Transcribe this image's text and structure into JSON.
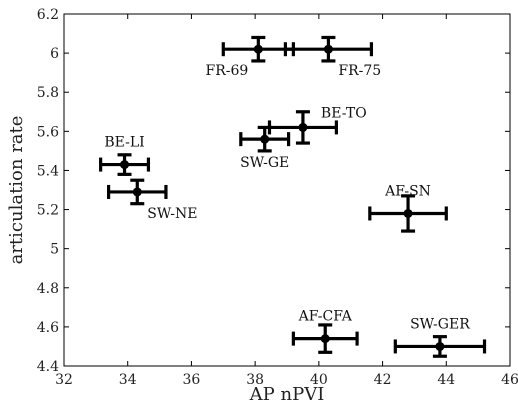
{
  "chart_data": {
    "type": "scatter",
    "title": "",
    "xlabel": "AP nPVI",
    "ylabel": "articulation rate",
    "xlim": [
      32,
      46
    ],
    "ylim": [
      4.4,
      6.2
    ],
    "xticks": [
      32,
      34,
      36,
      38,
      40,
      42,
      44,
      46
    ],
    "yticks": [
      4.4,
      4.6,
      4.8,
      5.0,
      5.2,
      5.4,
      5.6,
      5.8,
      6.0,
      6.2
    ],
    "ytick_labels": [
      "4.4",
      "4.6",
      "4.8",
      "5",
      "5.2",
      "5.4",
      "5.6",
      "5.8",
      "6",
      "6.2"
    ],
    "grid": false,
    "error_bars": true,
    "color": "#000000",
    "points": [
      {
        "label": "FR-69",
        "x": 38.1,
        "y": 6.02,
        "xerr": 1.1,
        "yerr": 0.06,
        "label_pos": "below-left"
      },
      {
        "label": "FR-75",
        "x": 40.3,
        "y": 6.02,
        "xerr": 1.35,
        "yerr": 0.06,
        "label_pos": "below-right"
      },
      {
        "label": "BE-TO",
        "x": 39.5,
        "y": 5.62,
        "xerr": 1.05,
        "yerr": 0.08,
        "label_pos": "above-right"
      },
      {
        "label": "SW-GE",
        "x": 38.3,
        "y": 5.56,
        "xerr": 0.75,
        "yerr": 0.06,
        "label_pos": "below"
      },
      {
        "label": "BE-LI",
        "x": 33.9,
        "y": 5.43,
        "xerr": 0.75,
        "yerr": 0.05,
        "label_pos": "above"
      },
      {
        "label": "SW-NE",
        "x": 34.3,
        "y": 5.29,
        "xerr": 0.9,
        "yerr": 0.06,
        "label_pos": "below-right"
      },
      {
        "label": "AF-SN",
        "x": 42.8,
        "y": 5.18,
        "xerr": 1.2,
        "yerr": 0.09,
        "label_pos": "above"
      },
      {
        "label": "AF-CFA",
        "x": 40.2,
        "y": 4.54,
        "xerr": 1.0,
        "yerr": 0.07,
        "label_pos": "above"
      },
      {
        "label": "SW-GER",
        "x": 43.8,
        "y": 4.5,
        "xerr": 1.4,
        "yerr": 0.05,
        "label_pos": "above"
      }
    ]
  }
}
